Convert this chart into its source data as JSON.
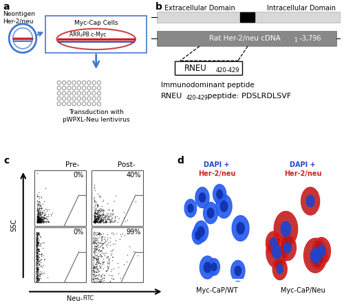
{
  "fig_width": 5.0,
  "fig_height": 4.47,
  "bg_color": "#ffffff",
  "panel_labels": [
    "a",
    "b",
    "c",
    "d"
  ],
  "panel_label_size": 10,
  "panel_label_weight": "bold",
  "panel_a": {
    "neontigen_text": "Neontigen\nHer-2/neu",
    "cell_label": "Myc-Cap Cells",
    "arr_label": "ARR₂PB c-Myc",
    "transduction_text": "Transduction with\npWPXL-Neu lentivirus"
  },
  "panel_b": {
    "extracellular_label": "Extracellular Domain",
    "intracellular_label": "Intracellular Domain",
    "cdna_label": "Rat Her-2/neu cDNA",
    "cdna_sub": "1·3,796",
    "rneu_label": "RNEU",
    "rneu_sub": "420-429",
    "immunodominant_text": "Immunodominant peptide",
    "peptide_text_pre": "RNEU",
    "peptide_sub": "420-429",
    "peptide_text_post": " peptide: PDSLRDLSVF"
  },
  "panel_c": {
    "pre_label": "Pre-",
    "post_label": "Post-",
    "ssc_label": "SSC",
    "neu_fitc_label": "Neu-",
    "neu_fitc_label2": "FITC",
    "percentages": [
      "0%",
      "40%",
      "0%",
      "99%"
    ]
  },
  "panel_d": {
    "left_label1": "DAPI +",
    "left_label2": "Her-2/neu",
    "right_label1": "DAPI +",
    "right_label2": "Her-2/neu",
    "bottom_left": "Myc-CaP/WT",
    "bottom_right": "Myc-CaP/Neu",
    "dapi_color": "#2244cc",
    "her2_color": "#cc2222"
  }
}
